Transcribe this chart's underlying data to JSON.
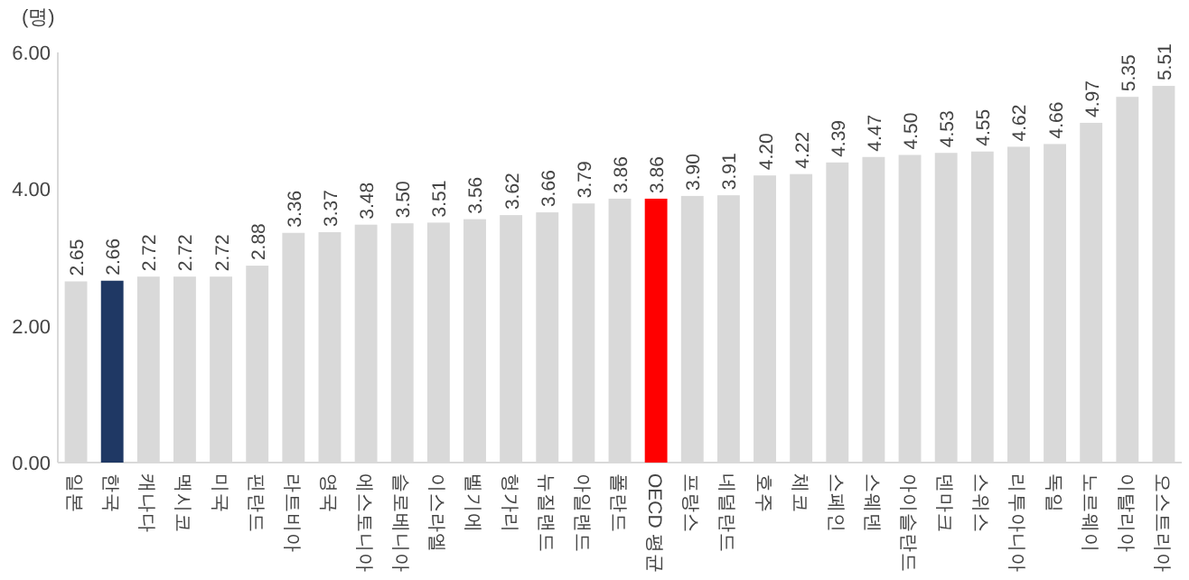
{
  "chart_data": {
    "type": "bar",
    "ylabel": "(명)",
    "categories": [
      "일본",
      "한국",
      "캐나다",
      "멕시코",
      "미국",
      "핀란드",
      "라트비아",
      "영국",
      "에스토니아",
      "슬로베니아",
      "이스라엘",
      "벨기에",
      "헝가리",
      "뉴질랜드",
      "아일랜드",
      "폴란드",
      "OECD 평균",
      "프랑스",
      "네덜란드",
      "호주",
      "체코",
      "스페인",
      "스웨덴",
      "아이슬란드",
      "덴마크",
      "스위스",
      "리투아니아",
      "독일",
      "노르웨이",
      "이탈리아",
      "오스트리아"
    ],
    "values": [
      2.65,
      2.66,
      2.72,
      2.72,
      2.72,
      2.88,
      3.36,
      3.37,
      3.48,
      3.5,
      3.51,
      3.56,
      3.62,
      3.66,
      3.79,
      3.86,
      3.86,
      3.9,
      3.91,
      4.2,
      4.22,
      4.39,
      4.47,
      4.5,
      4.53,
      4.55,
      4.62,
      4.66,
      4.97,
      5.35,
      5.51
    ],
    "colors": [
      "#d9d9d9",
      "#1f3864",
      "#d9d9d9",
      "#d9d9d9",
      "#d9d9d9",
      "#d9d9d9",
      "#d9d9d9",
      "#d9d9d9",
      "#d9d9d9",
      "#d9d9d9",
      "#d9d9d9",
      "#d9d9d9",
      "#d9d9d9",
      "#d9d9d9",
      "#d9d9d9",
      "#d9d9d9",
      "#ff0000",
      "#d9d9d9",
      "#d9d9d9",
      "#d9d9d9",
      "#d9d9d9",
      "#d9d9d9",
      "#d9d9d9",
      "#d9d9d9",
      "#d9d9d9",
      "#d9d9d9",
      "#d9d9d9",
      "#d9d9d9",
      "#d9d9d9",
      "#d9d9d9",
      "#d9d9d9"
    ],
    "ylim": [
      0,
      6
    ],
    "yticks": [
      {
        "value": 0,
        "label": "0.00"
      },
      {
        "value": 2,
        "label": "2.00"
      },
      {
        "value": 4,
        "label": "4.00"
      },
      {
        "value": 6,
        "label": "6.00"
      }
    ],
    "value_labels": [
      "2.65",
      "2.66",
      "2.72",
      "2.72",
      "2.72",
      "2.88",
      "3.36",
      "3.37",
      "3.48",
      "3.50",
      "3.51",
      "3.56",
      "3.62",
      "3.66",
      "3.79",
      "3.86",
      "3.86",
      "3.90",
      "3.91",
      "4.20",
      "4.22",
      "4.39",
      "4.47",
      "4.50",
      "4.53",
      "4.55",
      "4.62",
      "4.66",
      "4.97",
      "5.35",
      "5.51"
    ]
  }
}
